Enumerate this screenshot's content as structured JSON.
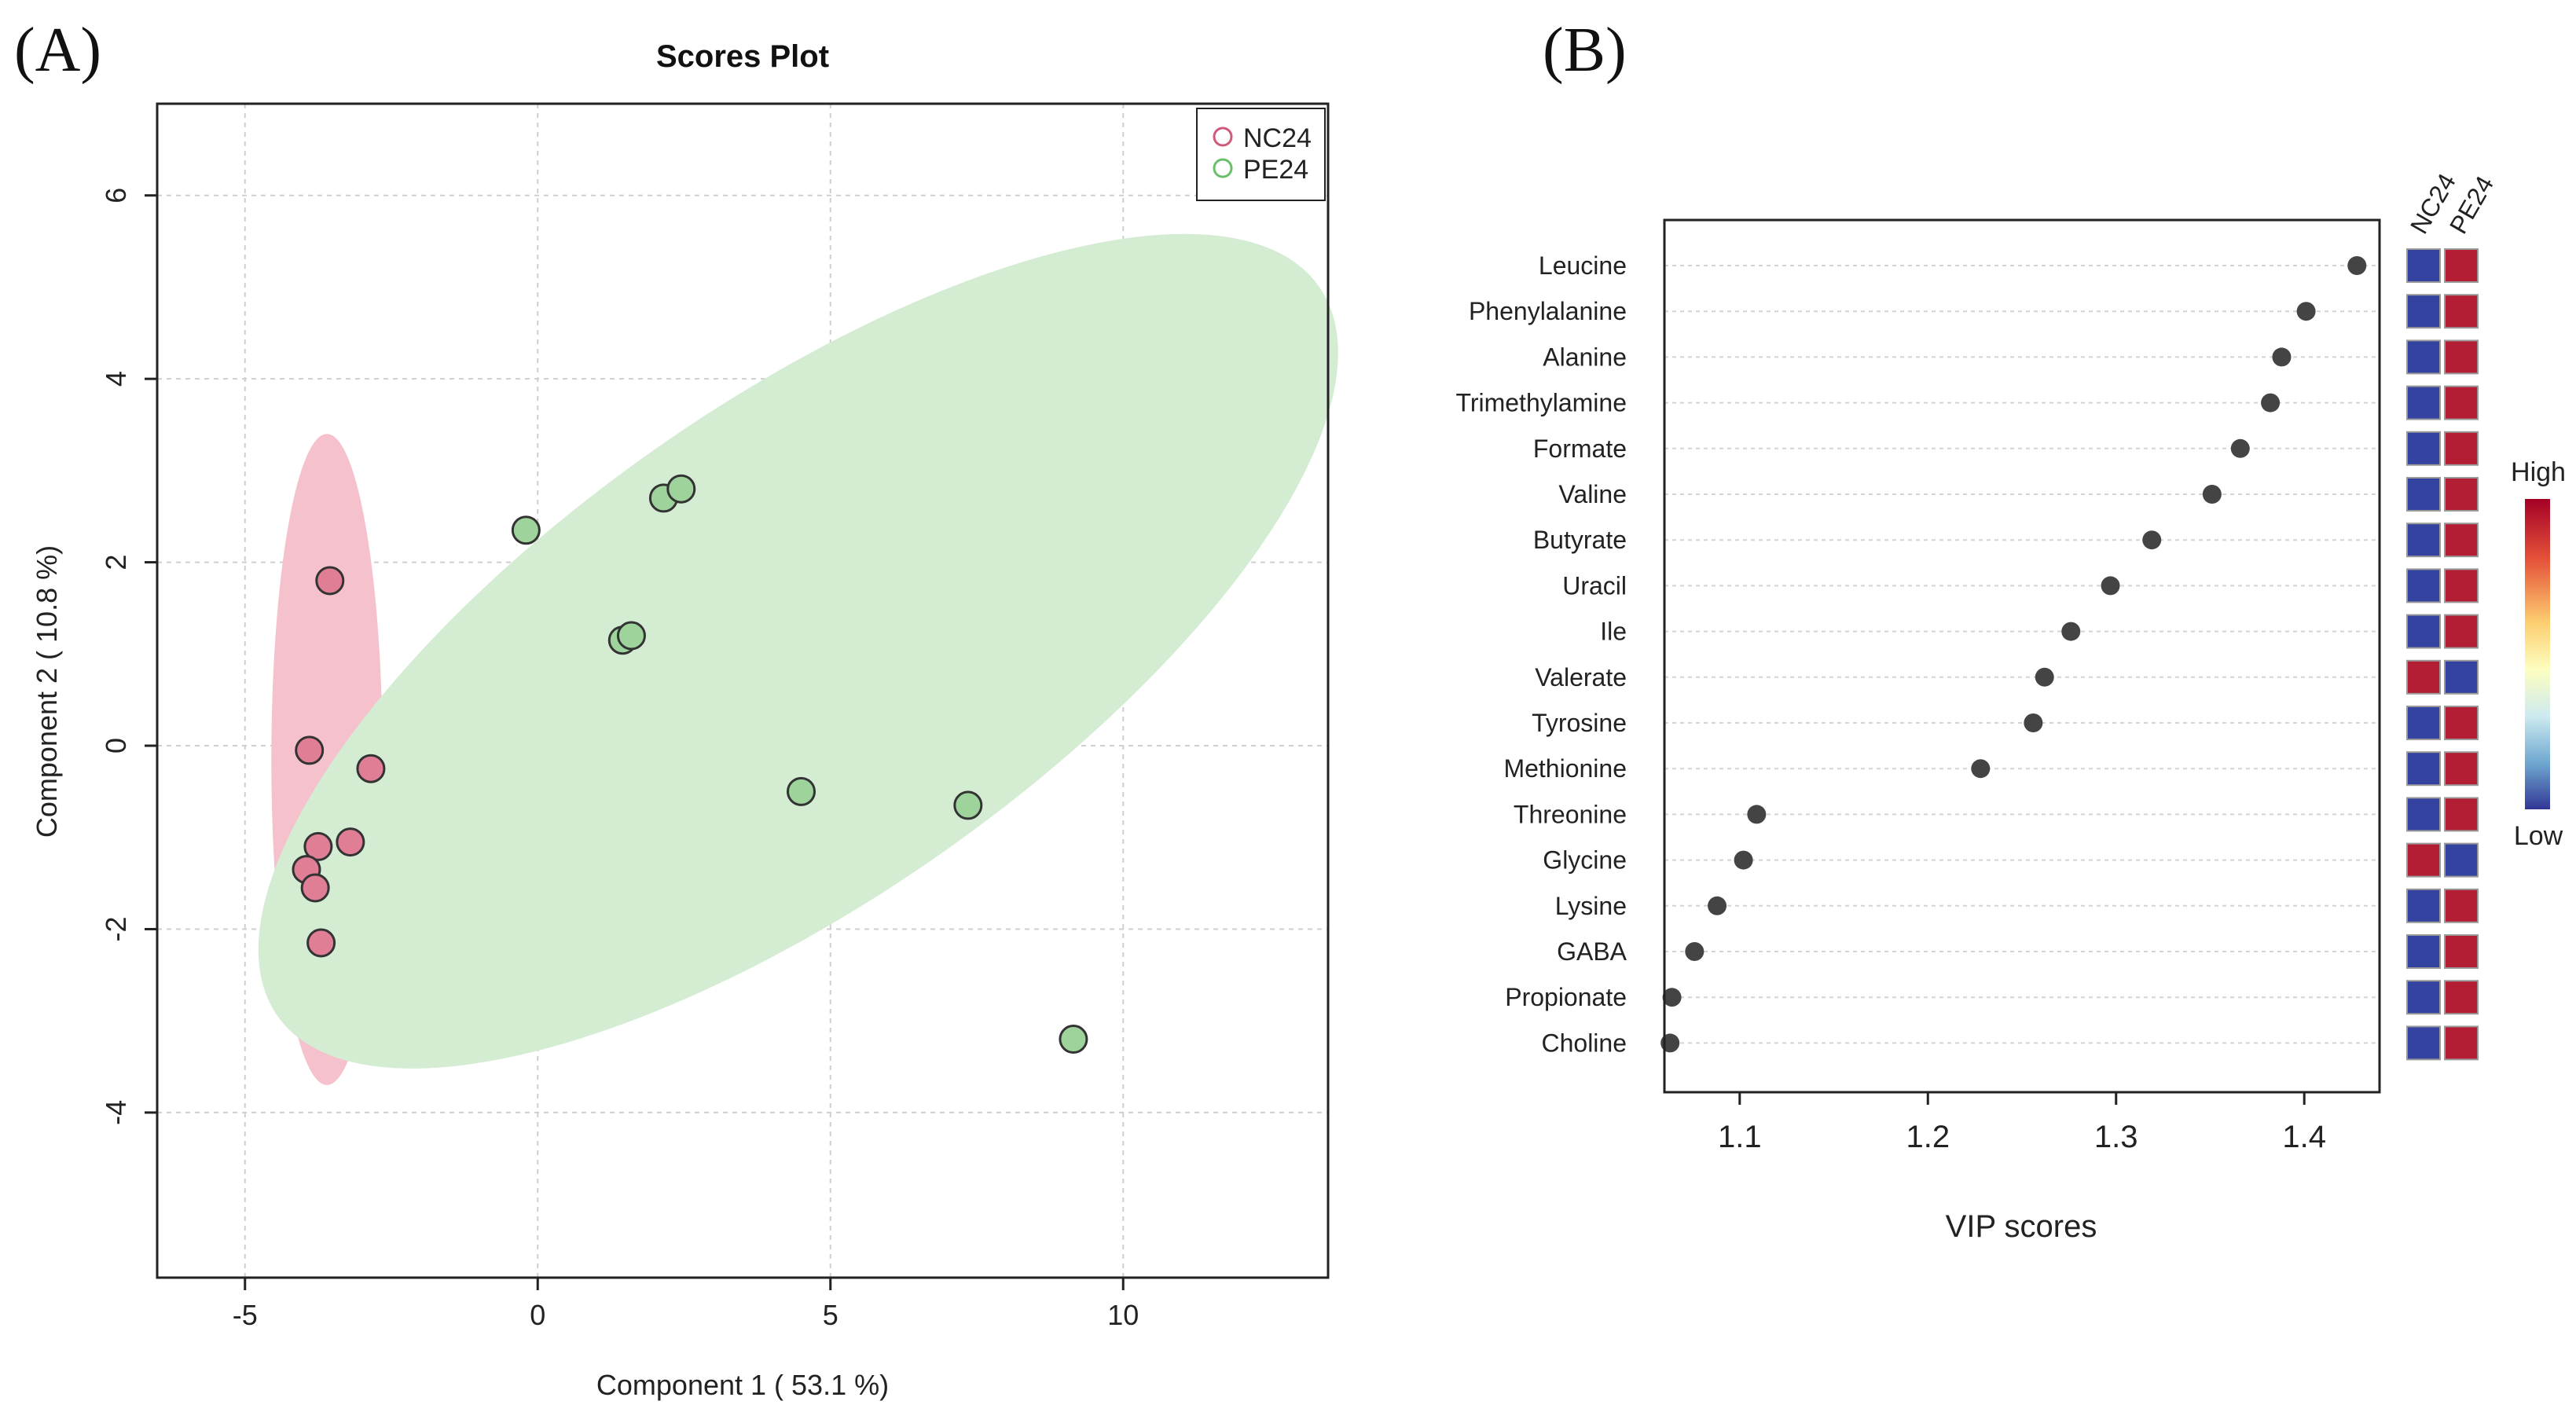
{
  "panel_labels": {
    "a": "(A)",
    "b": "(B)"
  },
  "colors": {
    "nc_fill": "#e07e96",
    "nc_ellipse": "#f5c1cd",
    "pe_fill": "#9ed39c",
    "pe_ellipse": "#d3ecd2",
    "legend_nc": "#d05a7a",
    "legend_pe": "#6cbf6a",
    "dot": "#444444",
    "heat_low": "#3442a0",
    "heat_high": "#b31e34"
  },
  "chart_data": [
    {
      "type": "scatter",
      "title": "Scores Plot",
      "xlabel": "Component 1 ( 53.1 %)",
      "ylabel": "Component 2 ( 10.8 %)",
      "xlim": [
        -6.5,
        13.5
      ],
      "ylim": [
        -5.8,
        7.0
      ],
      "xticks": [
        -5,
        0,
        5,
        10
      ],
      "yticks": [
        -4,
        -2,
        0,
        2,
        4,
        6
      ],
      "grid": true,
      "legend_position": "top-right",
      "series": [
        {
          "name": "NC24",
          "x": [
            -3.55,
            -3.9,
            -2.85,
            -3.75,
            -3.2,
            -3.95,
            -3.8,
            -3.7
          ],
          "y": [
            1.8,
            -0.05,
            -0.25,
            -1.1,
            -1.05,
            -1.35,
            -1.55,
            -2.15
          ],
          "ellipse": {
            "cx": -3.6,
            "cy": -0.15,
            "rx": 0.95,
            "ry": 3.55,
            "angle_deg": 0
          }
        },
        {
          "name": "PE24",
          "x": [
            -0.2,
            2.15,
            2.45,
            1.45,
            1.6,
            4.5,
            7.35,
            9.15
          ],
          "y": [
            2.35,
            2.7,
            2.8,
            1.15,
            1.2,
            -0.5,
            -0.65,
            -3.2
          ],
          "ellipse": {
            "cx": 4.45,
            "cy": 1.03,
            "rx": 10.86,
            "ry": 2.7,
            "angle_deg": -35
          }
        }
      ]
    },
    {
      "type": "scatter",
      "xlabel": "VIP scores",
      "xlim": [
        1.06,
        1.44
      ],
      "xticks": [
        1.1,
        1.2,
        1.3,
        1.4
      ],
      "grid": true,
      "features": [
        "Leucine",
        "Phenylalanine",
        "Alanine",
        "Trimethylamine",
        "Formate",
        "Valine",
        "Butyrate",
        "Uracil",
        "Ile",
        "Valerate",
        "Tyrosine",
        "Methionine",
        "Threonine",
        "Glycine",
        "Lysine",
        "GABA",
        "Propionate",
        "Choline"
      ],
      "values": [
        1.428,
        1.401,
        1.388,
        1.382,
        1.366,
        1.351,
        1.319,
        1.297,
        1.276,
        1.262,
        1.256,
        1.228,
        1.109,
        1.102,
        1.088,
        1.076,
        1.064,
        1.063
      ],
      "heatmap": {
        "columns": [
          "NC24",
          "PE24"
        ],
        "levels": [
          [
            "low",
            "high"
          ],
          [
            "low",
            "high"
          ],
          [
            "low",
            "high"
          ],
          [
            "low",
            "high"
          ],
          [
            "low",
            "high"
          ],
          [
            "low",
            "high"
          ],
          [
            "low",
            "high"
          ],
          [
            "low",
            "high"
          ],
          [
            "low",
            "high"
          ],
          [
            "high",
            "low"
          ],
          [
            "low",
            "high"
          ],
          [
            "low",
            "high"
          ],
          [
            "low",
            "high"
          ],
          [
            "high",
            "low"
          ],
          [
            "low",
            "high"
          ],
          [
            "low",
            "high"
          ],
          [
            "low",
            "high"
          ],
          [
            "low",
            "high"
          ]
        ]
      },
      "colorbar": {
        "high_label": "High",
        "low_label": "Low"
      }
    }
  ]
}
